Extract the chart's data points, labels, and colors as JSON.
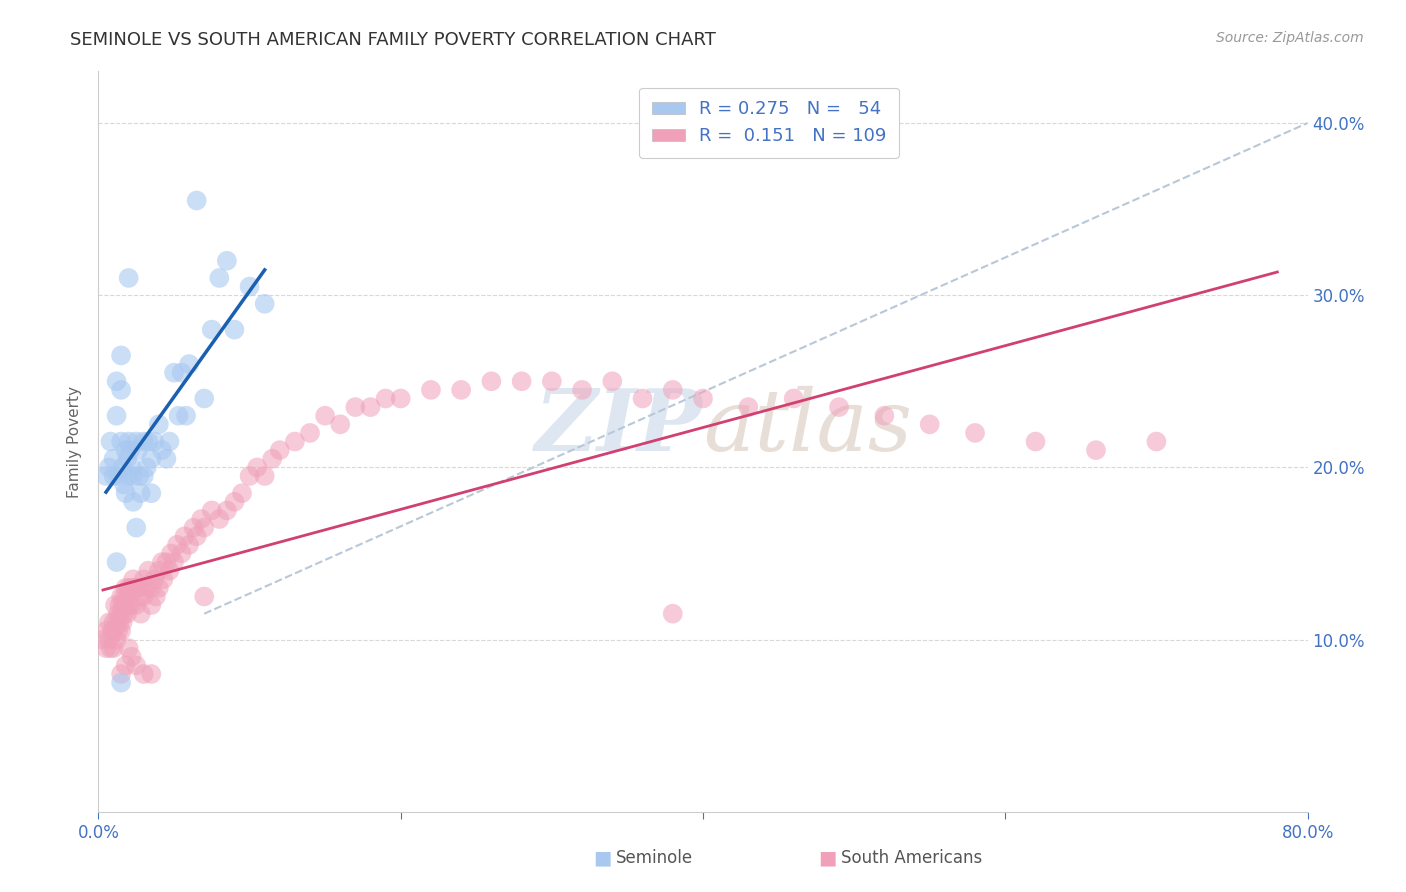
{
  "title": "SEMINOLE VS SOUTH AMERICAN FAMILY POVERTY CORRELATION CHART",
  "source": "Source: ZipAtlas.com",
  "ylabel": "Family Poverty",
  "right_ytick_labels": [
    "10.0%",
    "20.0%",
    "30.0%",
    "40.0%"
  ],
  "right_ytick_values": [
    0.1,
    0.2,
    0.3,
    0.4
  ],
  "xlim": [
    0.0,
    0.8
  ],
  "ylim": [
    0.0,
    0.43
  ],
  "seminole_R": 0.275,
  "seminole_N": 54,
  "south_american_R": 0.151,
  "south_american_N": 109,
  "seminole_color": "#a8c8f0",
  "seminole_line_color": "#1a5fb0",
  "south_american_color": "#f0a0b8",
  "south_american_line_color": "#d04070",
  "trendline_color": "#b8c8d8",
  "background_color": "#ffffff",
  "grid_color": "#d8d8d8",
  "legend_text_color": "#4472c4",
  "seminole_x": [
    0.005,
    0.007,
    0.008,
    0.01,
    0.01,
    0.012,
    0.012,
    0.013,
    0.015,
    0.015,
    0.015,
    0.016,
    0.017,
    0.018,
    0.018,
    0.019,
    0.02,
    0.02,
    0.021,
    0.022,
    0.023,
    0.023,
    0.025,
    0.026,
    0.027,
    0.028,
    0.03,
    0.03,
    0.032,
    0.033,
    0.035,
    0.035,
    0.037,
    0.04,
    0.042,
    0.045,
    0.047,
    0.05,
    0.053,
    0.055,
    0.058,
    0.06,
    0.065,
    0.07,
    0.075,
    0.08,
    0.085,
    0.09,
    0.1,
    0.11,
    0.012,
    0.015,
    0.02,
    0.025
  ],
  "seminole_y": [
    0.195,
    0.2,
    0.215,
    0.195,
    0.205,
    0.25,
    0.23,
    0.195,
    0.265,
    0.245,
    0.215,
    0.2,
    0.19,
    0.185,
    0.21,
    0.205,
    0.215,
    0.195,
    0.21,
    0.2,
    0.195,
    0.18,
    0.215,
    0.21,
    0.195,
    0.185,
    0.215,
    0.195,
    0.2,
    0.215,
    0.205,
    0.185,
    0.215,
    0.225,
    0.21,
    0.205,
    0.215,
    0.255,
    0.23,
    0.255,
    0.23,
    0.26,
    0.355,
    0.24,
    0.28,
    0.31,
    0.32,
    0.28,
    0.305,
    0.295,
    0.145,
    0.075,
    0.31,
    0.165
  ],
  "south_american_x": [
    0.003,
    0.005,
    0.005,
    0.007,
    0.007,
    0.008,
    0.009,
    0.01,
    0.01,
    0.01,
    0.011,
    0.012,
    0.012,
    0.013,
    0.013,
    0.014,
    0.014,
    0.015,
    0.015,
    0.015,
    0.016,
    0.016,
    0.017,
    0.017,
    0.018,
    0.018,
    0.019,
    0.019,
    0.02,
    0.02,
    0.022,
    0.022,
    0.023,
    0.024,
    0.025,
    0.025,
    0.027,
    0.028,
    0.028,
    0.03,
    0.03,
    0.032,
    0.033,
    0.035,
    0.035,
    0.037,
    0.038,
    0.04,
    0.04,
    0.042,
    0.043,
    0.045,
    0.047,
    0.048,
    0.05,
    0.052,
    0.055,
    0.057,
    0.06,
    0.063,
    0.065,
    0.068,
    0.07,
    0.075,
    0.08,
    0.085,
    0.09,
    0.095,
    0.1,
    0.105,
    0.11,
    0.115,
    0.12,
    0.13,
    0.14,
    0.15,
    0.16,
    0.17,
    0.18,
    0.19,
    0.2,
    0.22,
    0.24,
    0.26,
    0.28,
    0.3,
    0.32,
    0.34,
    0.36,
    0.38,
    0.4,
    0.43,
    0.46,
    0.49,
    0.52,
    0.55,
    0.58,
    0.62,
    0.66,
    0.7,
    0.015,
    0.018,
    0.02,
    0.022,
    0.025,
    0.03,
    0.035,
    0.07,
    0.38
  ],
  "south_american_y": [
    0.1,
    0.095,
    0.105,
    0.11,
    0.1,
    0.095,
    0.105,
    0.11,
    0.095,
    0.105,
    0.12,
    0.11,
    0.1,
    0.115,
    0.105,
    0.12,
    0.11,
    0.125,
    0.115,
    0.105,
    0.12,
    0.11,
    0.125,
    0.115,
    0.13,
    0.12,
    0.125,
    0.115,
    0.13,
    0.12,
    0.13,
    0.12,
    0.135,
    0.13,
    0.13,
    0.12,
    0.13,
    0.125,
    0.115,
    0.135,
    0.125,
    0.13,
    0.14,
    0.13,
    0.12,
    0.135,
    0.125,
    0.14,
    0.13,
    0.145,
    0.135,
    0.145,
    0.14,
    0.15,
    0.145,
    0.155,
    0.15,
    0.16,
    0.155,
    0.165,
    0.16,
    0.17,
    0.165,
    0.175,
    0.17,
    0.175,
    0.18,
    0.185,
    0.195,
    0.2,
    0.195,
    0.205,
    0.21,
    0.215,
    0.22,
    0.23,
    0.225,
    0.235,
    0.235,
    0.24,
    0.24,
    0.245,
    0.245,
    0.25,
    0.25,
    0.25,
    0.245,
    0.25,
    0.24,
    0.245,
    0.24,
    0.235,
    0.24,
    0.235,
    0.23,
    0.225,
    0.22,
    0.215,
    0.21,
    0.215,
    0.08,
    0.085,
    0.095,
    0.09,
    0.085,
    0.08,
    0.08,
    0.125,
    0.115
  ],
  "dashed_line_x": [
    0.07,
    0.8
  ],
  "dashed_line_y": [
    0.115,
    0.4
  ]
}
